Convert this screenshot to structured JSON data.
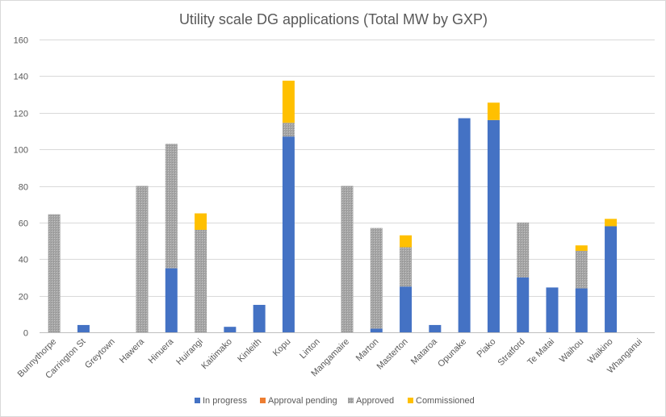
{
  "chart_data": {
    "type": "bar",
    "stacked": true,
    "title": "Utility scale DG applications (Total MW by GXP)",
    "xlabel": "",
    "ylabel": "",
    "ylim": [
      0,
      160
    ],
    "yticks": [
      0,
      20,
      40,
      60,
      80,
      100,
      120,
      140,
      160
    ],
    "grid": true,
    "legend_position": "bottom",
    "categories": [
      "Bunnythorpe",
      "Carrington St",
      "Greytown",
      "Hawera",
      "Hinuera",
      "Huirangi",
      "Kaitimako",
      "Kinleith",
      "Kopu",
      "Linton",
      "Mangamaire",
      "Marton",
      "Masterton",
      "Mataroa",
      "Opunake",
      "Piako",
      "Stratford",
      "Te Matai",
      "Waihou",
      "Waikino",
      "Whanganui"
    ],
    "series": [
      {
        "name": "In progress",
        "color": "#4472c4",
        "values": [
          0,
          4,
          0,
          0,
          35,
          0,
          3,
          15,
          107,
          0,
          0,
          2,
          25,
          4,
          117,
          116,
          30,
          24.5,
          24,
          58,
          0
        ]
      },
      {
        "name": "Approval pending",
        "color": "#ed7d31",
        "values": [
          0,
          0,
          0,
          0,
          0,
          0,
          0,
          0,
          0,
          0,
          0,
          0,
          0,
          0,
          0,
          0,
          0,
          0,
          0,
          0,
          0
        ]
      },
      {
        "name": "Approved",
        "color": "#a5a5a5",
        "values": [
          64.5,
          0,
          0,
          80,
          68,
          56,
          0,
          0,
          7.5,
          0,
          80,
          55,
          21.5,
          0,
          0,
          0,
          30,
          0,
          20.5,
          0,
          0
        ]
      },
      {
        "name": "Commissioned",
        "color": "#ffc000",
        "values": [
          0,
          0,
          0,
          0,
          0,
          9,
          0,
          0,
          23,
          0,
          0,
          0,
          6.5,
          0,
          0,
          9.5,
          0,
          0,
          3,
          4,
          0
        ]
      }
    ]
  }
}
